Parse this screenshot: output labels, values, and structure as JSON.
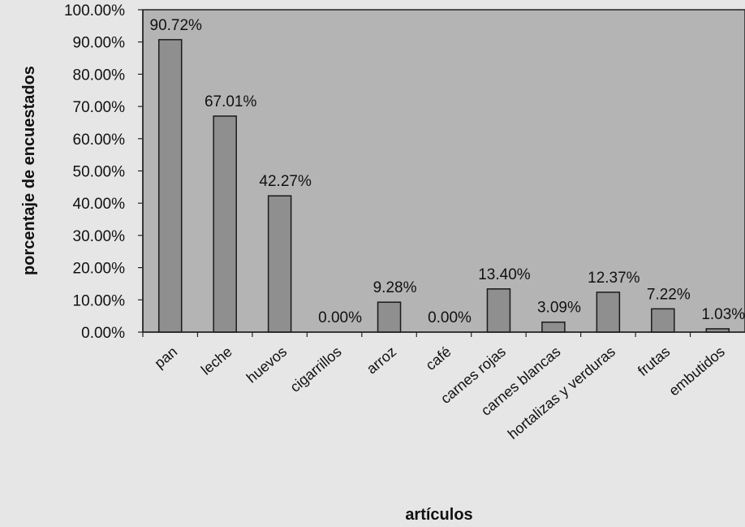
{
  "chart_data": {
    "type": "bar",
    "title": "",
    "xlabel": "artículos",
    "ylabel": "porcentaje de encuestados",
    "ylim": [
      0,
      100
    ],
    "yticks": [
      "0.00%",
      "10.00%",
      "20.00%",
      "30.00%",
      "40.00%",
      "50.00%",
      "60.00%",
      "70.00%",
      "80.00%",
      "90.00%",
      "100.00%"
    ],
    "categories": [
      "pan",
      "leche",
      "huevos",
      "cigarrillos",
      "arroz",
      "café",
      "carnes rojas",
      "carnes blancas",
      "hortalizas y verduras",
      "frutas",
      "embutidos"
    ],
    "values": [
      90.72,
      67.01,
      42.27,
      0.0,
      9.28,
      0.0,
      13.4,
      3.09,
      12.37,
      7.22,
      1.03
    ],
    "data_labels": [
      "90.72%",
      "67.01%",
      "42.27%",
      "0.00%",
      "9.28%",
      "0.00%",
      "13.40%",
      "3.09%",
      "12.37%",
      "7.22%",
      "1.03%"
    ],
    "grid": false,
    "legend": "none",
    "colors": {
      "plot_background": "#b4b4b4",
      "bar_fill": "#8f8f8f",
      "bar_stroke": "#1a1a1a",
      "page_background": "#e6e6e6"
    }
  }
}
